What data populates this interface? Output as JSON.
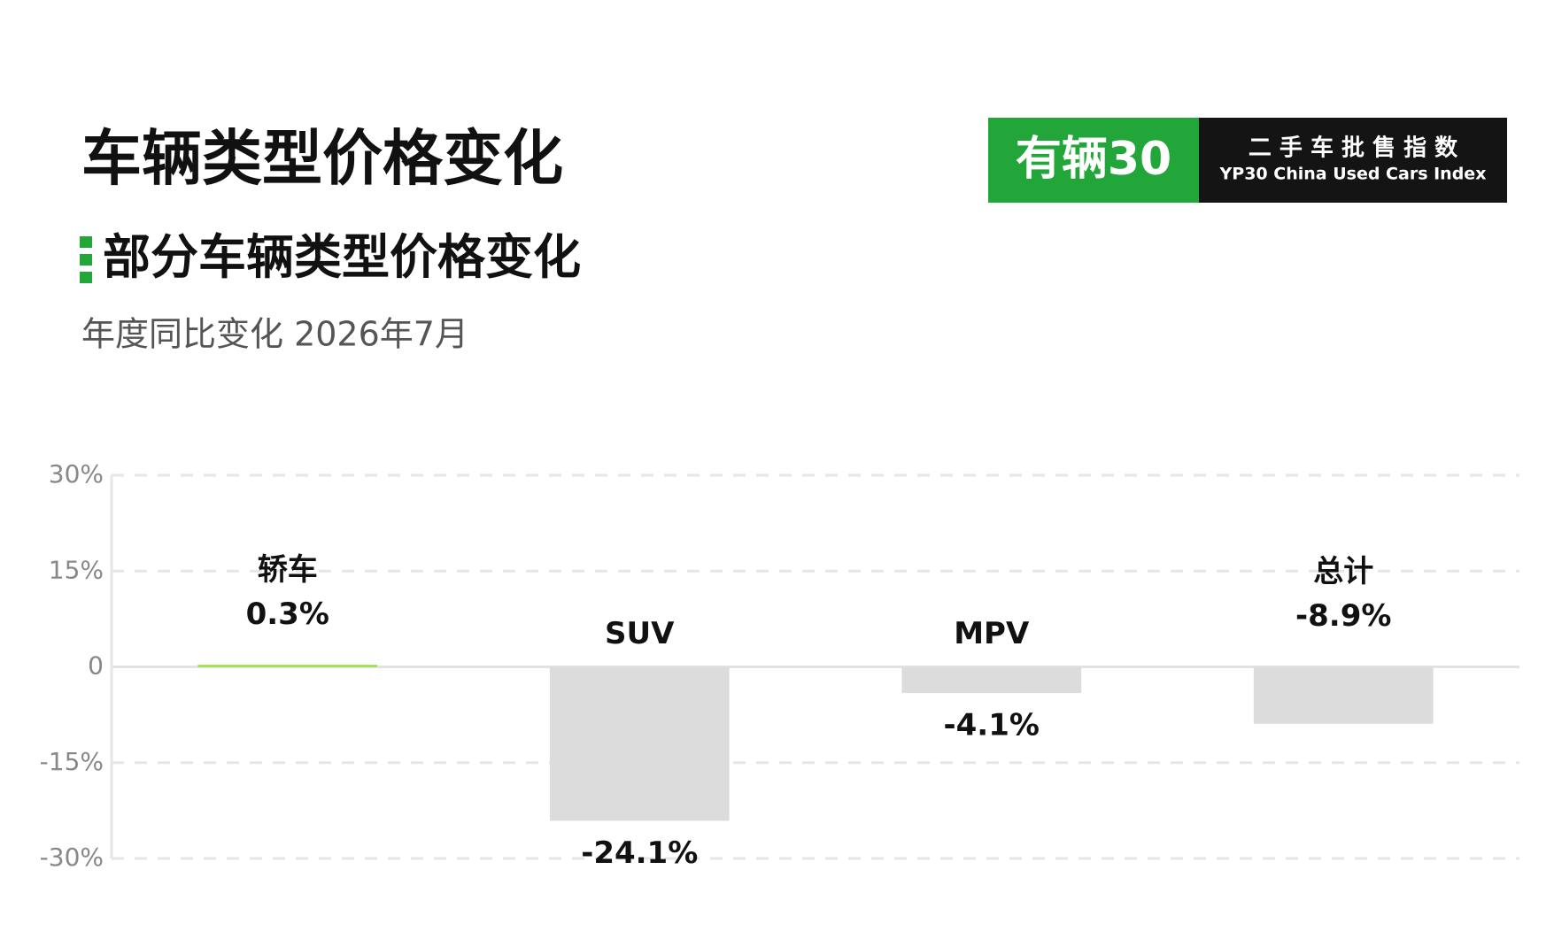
{
  "chart_data": {
    "type": "bar",
    "title": "车辆类型价格变化",
    "subtitle": "部分车辆类型价格变化",
    "caption": "年度同比变化 2026年7月",
    "logo": {
      "brand": "有辆30",
      "name": "二 手 车 批 售 指 数",
      "tagline": "YP30 China Used Cars Index"
    },
    "categories": [
      "轿车",
      "SUV",
      "MPV",
      "总计"
    ],
    "values": [
      0.3,
      -24.1,
      -4.1,
      -8.9
    ],
    "value_labels": [
      "0.3%",
      "-24.1%",
      "-4.1%",
      "-8.9%"
    ],
    "colors": {
      "positive": "#8ee31f",
      "negative": "#dcdcdc"
    },
    "ylim": [
      -30,
      30
    ],
    "yticks": [
      {
        "value": 30,
        "label": "30%"
      },
      {
        "value": 15,
        "label": "15%"
      },
      0,
      {
        "value": -15,
        "label": "-15%"
      },
      {
        "value": -30,
        "label": "-30%"
      }
    ],
    "grid": true
  }
}
